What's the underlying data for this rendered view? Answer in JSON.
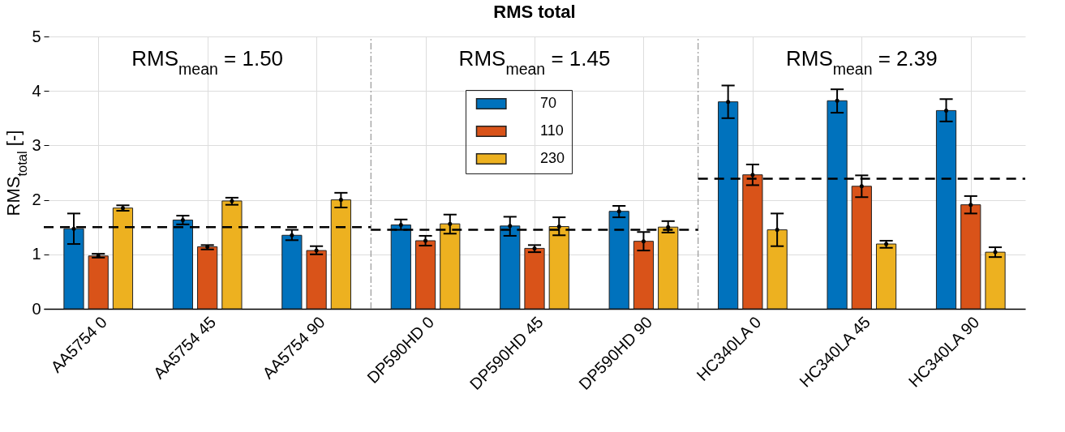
{
  "chart_data": {
    "type": "bar",
    "title": "RMS total",
    "ylabel": "RMS$_{total}$ [-]",
    "categories": [
      "AA5754 0",
      "AA5754 45",
      "AA5754 90",
      "DP590HD 0",
      "DP590HD 45",
      "DP590HD 90",
      "HC340LA 0",
      "HC340LA 45",
      "HC340LA 90"
    ],
    "series": [
      {
        "name": "70",
        "color": "#0072bd",
        "values": [
          1.47,
          1.63,
          1.35,
          1.54,
          1.52,
          1.79,
          3.8,
          3.82,
          3.64
        ],
        "errors": [
          [
            1.19,
            1.75
          ],
          [
            1.55,
            1.71
          ],
          [
            1.26,
            1.45
          ],
          [
            1.45,
            1.64
          ],
          [
            1.34,
            1.69
          ],
          [
            1.68,
            1.89
          ],
          [
            3.5,
            4.1
          ],
          [
            3.6,
            4.03
          ],
          [
            3.44,
            3.85
          ]
        ]
      },
      {
        "name": "110",
        "color": "#d95319",
        "values": [
          0.97,
          1.14,
          1.07,
          1.25,
          1.11,
          1.24,
          2.46,
          2.25,
          1.91
        ],
        "errors": [
          [
            0.94,
            1.01
          ],
          [
            1.09,
            1.17
          ],
          [
            1.0,
            1.15
          ],
          [
            1.16,
            1.34
          ],
          [
            1.04,
            1.17
          ],
          [
            1.07,
            1.41
          ],
          [
            2.27,
            2.65
          ],
          [
            2.05,
            2.45
          ],
          [
            1.75,
            2.07
          ]
        ]
      },
      {
        "name": "230",
        "color": "#edb120",
        "values": [
          1.85,
          1.98,
          2.0,
          1.56,
          1.51,
          1.5,
          1.45,
          1.19,
          1.04
        ],
        "errors": [
          [
            1.8,
            1.9
          ],
          [
            1.91,
            2.04
          ],
          [
            1.86,
            2.13
          ],
          [
            1.38,
            1.73
          ],
          [
            1.35,
            1.68
          ],
          [
            1.4,
            1.61
          ],
          [
            1.15,
            1.75
          ],
          [
            1.12,
            1.25
          ],
          [
            0.95,
            1.13
          ]
        ]
      }
    ],
    "ylim": [
      0,
      5
    ],
    "yticks": [
      0,
      1,
      2,
      3,
      4,
      5
    ],
    "grid": true,
    "legend": "top",
    "ref_lines": [
      {
        "axis": "y",
        "value": 1.5,
        "color": "#000000",
        "line_style": "dashed"
      },
      {
        "axis": "y",
        "value": 1.45,
        "color": "#000000",
        "line_style": "dashed"
      },
      {
        "axis": "y",
        "value": 2.39,
        "color": "#000000",
        "line_style": "dashed"
      }
    ],
    "annotations": [
      "RMS$_{mean}$ = 1.50",
      "RMS$_{mean}$ = 1.45",
      "RMS$_{mean}$ = 2.39"
    ]
  }
}
